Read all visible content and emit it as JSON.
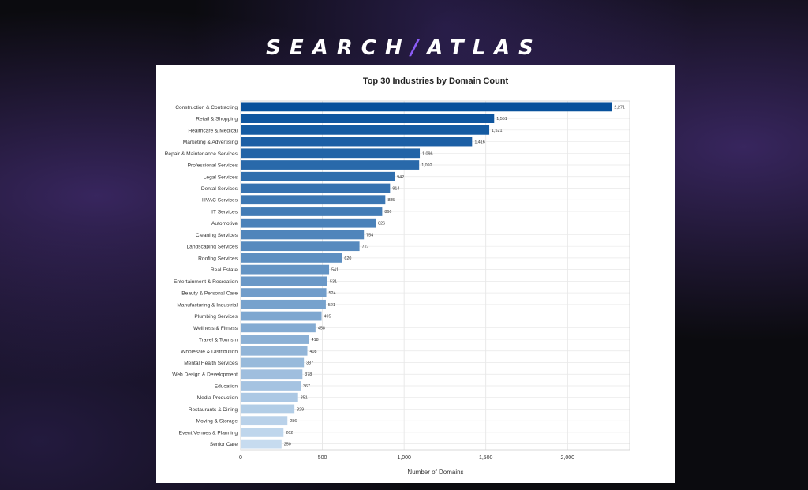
{
  "brand": {
    "left": "SEARCH",
    "separator": "/",
    "right": "ATLAS"
  },
  "chart_data": {
    "type": "bar",
    "orientation": "horizontal",
    "title": "Top 30 Industries by Domain Count",
    "xlabel": "Number of Domains",
    "ylabel": "",
    "xlim": [
      0,
      2380
    ],
    "xticks": [
      0,
      500,
      1000,
      1500,
      2000
    ],
    "xtick_labels": [
      "0",
      "500",
      "1,000",
      "1,500",
      "2,000"
    ],
    "grid": true,
    "categories": [
      "Construction & Contracting",
      "Retail & Shopping",
      "Healthcare & Medical",
      "Marketing & Advertising",
      "Repair & Maintenance Services",
      "Professional Services",
      "Legal Services",
      "Dental Services",
      "HVAC Services",
      "IT Services",
      "Automotive",
      "Cleaning Services",
      "Landscaping Services",
      "Roofing Services",
      "Real Estate",
      "Entertainment & Recreation",
      "Beauty & Personal Care",
      "Manufacturing & Industrial",
      "Plumbing Services",
      "Wellness & Fitness",
      "Travel & Tourism",
      "Wholesale & Distribution",
      "Mental Health Services",
      "Web Design & Development",
      "Education",
      "Media Production",
      "Restaurants & Dining",
      "Moving & Storage",
      "Event Venues & Planning",
      "Senior Care"
    ],
    "values": [
      2271,
      1551,
      1521,
      1416,
      1096,
      1092,
      942,
      914,
      885,
      866,
      826,
      754,
      727,
      620,
      541,
      531,
      524,
      521,
      495,
      458,
      418,
      408,
      387,
      378,
      367,
      351,
      329,
      286,
      262,
      250
    ],
    "value_labels": [
      "2,271",
      "1,551",
      "1,521",
      "1,416",
      "1,096",
      "1,092",
      "942",
      "914",
      "885",
      "866",
      "826",
      "754",
      "727",
      "620",
      "541",
      "531",
      "524",
      "521",
      "495",
      "458",
      "418",
      "408",
      "387",
      "378",
      "367",
      "351",
      "329",
      "286",
      "262",
      "250"
    ],
    "color_range": [
      "#08519c",
      "#c6dbef"
    ]
  }
}
